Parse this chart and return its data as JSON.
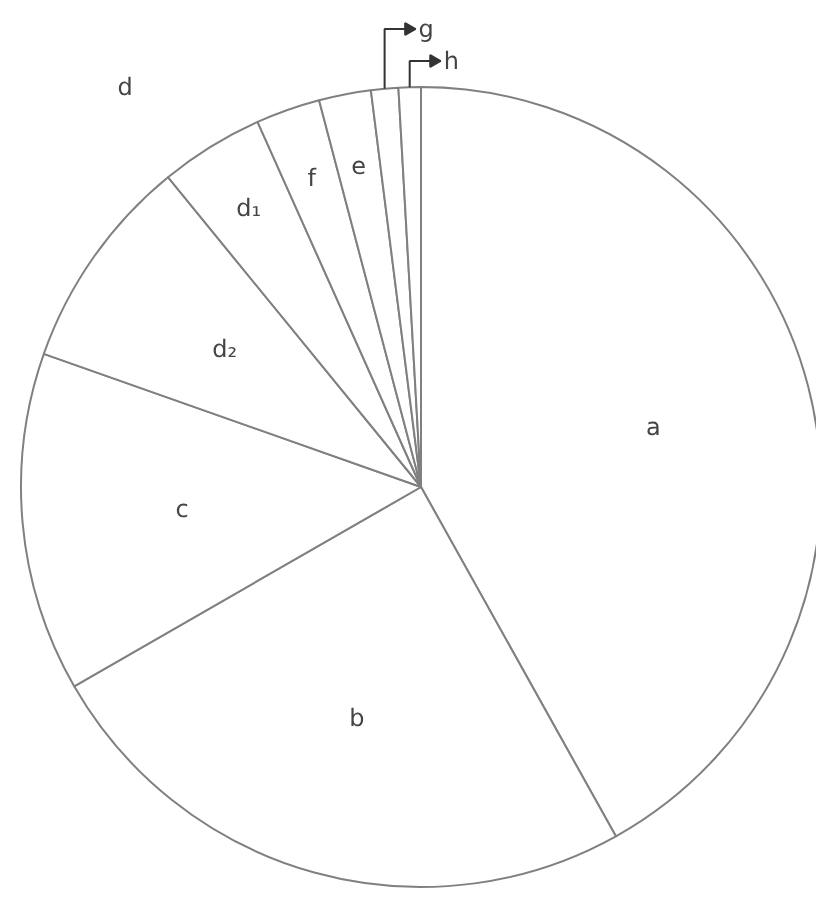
{
  "chart_data": {
    "type": "pie",
    "categories": [
      "a",
      "b",
      "c",
      "d₂",
      "d₁",
      "f",
      "e",
      "g",
      "h"
    ],
    "values": [
      41.9,
      24.8,
      13.7,
      8.7,
      4.2,
      2.6,
      2.1,
      1.1,
      0.9
    ],
    "colors": [
      "#ffffff",
      "#ffffff",
      "#ffffff",
      "#ffffff",
      "#ffffff",
      "#ffffff",
      "#ffffff",
      "#ffffff",
      "#ffffff"
    ],
    "annotations": [
      "d"
    ]
  }
}
